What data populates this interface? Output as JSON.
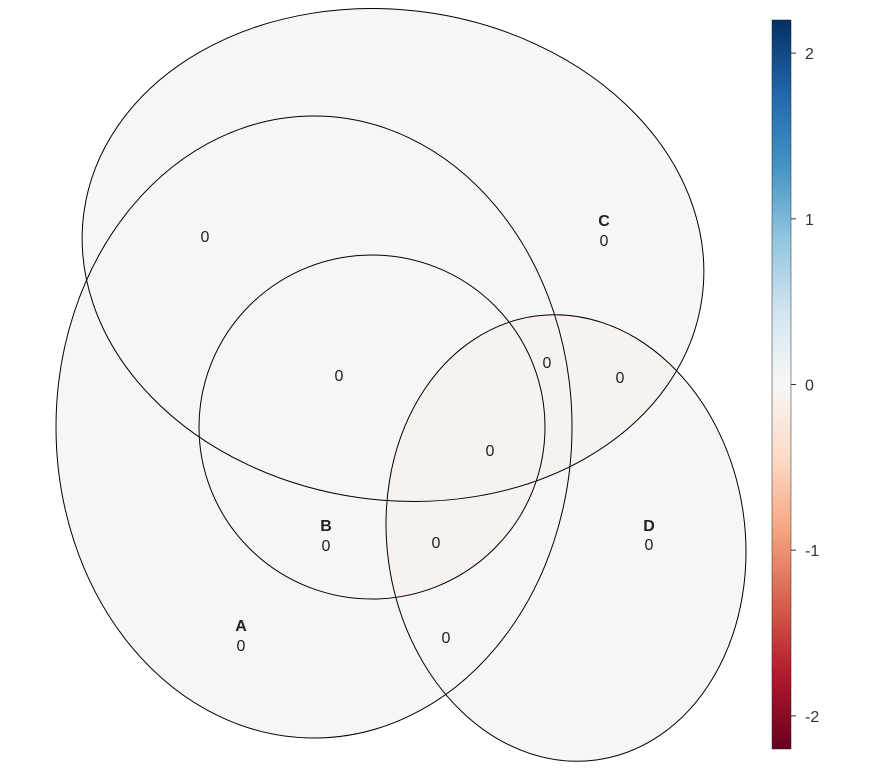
{
  "sets": [
    {
      "name": "A",
      "count": "0"
    },
    {
      "name": "B",
      "count": "0"
    },
    {
      "name": "C",
      "count": "0"
    },
    {
      "name": "D",
      "count": "0"
    }
  ],
  "regions": [
    {
      "id": "region-c-left",
      "value": "0"
    },
    {
      "id": "region-b-c",
      "value": "0"
    },
    {
      "id": "region-a-c-d",
      "value": "0"
    },
    {
      "id": "region-c-d",
      "value": "0"
    },
    {
      "id": "region-a-b-c-d",
      "value": "0"
    },
    {
      "id": "region-a-b-d",
      "value": "0"
    },
    {
      "id": "region-a-d",
      "value": "0"
    }
  ],
  "colorbar": {
    "ticks": [
      "2",
      "1",
      "0",
      "-1",
      "-2"
    ],
    "range": [
      -2.2,
      2.2
    ],
    "colors": [
      "#67001f",
      "#b2182b",
      "#d6604d",
      "#f4a582",
      "#fddbc7",
      "#f7f7f7",
      "#d1e5f0",
      "#92c5de",
      "#4393c3",
      "#2166ac",
      "#053061"
    ]
  },
  "colors": {
    "region_fill": "#f6f6f6",
    "region_fill_tint": "#f7f2ef",
    "outline": "#000000"
  }
}
